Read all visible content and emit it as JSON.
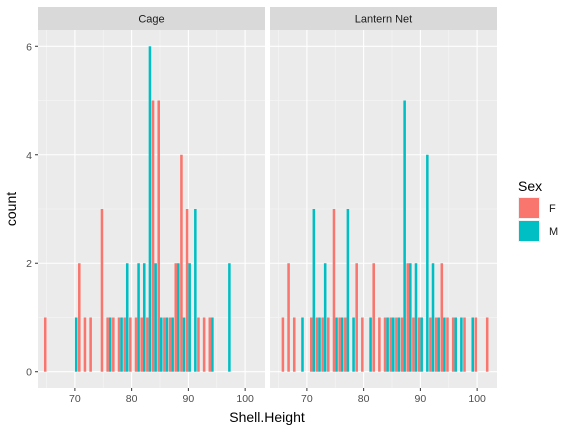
{
  "chart_data": {
    "type": "bar",
    "xlabel": "Shell.Height",
    "ylabel": "count",
    "xlim": [
      63.5,
      103.5
    ],
    "ylim": [
      -0.3,
      6.3
    ],
    "x_ticks": [
      70,
      80,
      90,
      100
    ],
    "y_ticks": [
      0,
      2,
      4,
      6
    ],
    "grid": true,
    "legend": {
      "title": "Sex",
      "placement": "right",
      "entries": [
        {
          "label": "F",
          "color": "#F8766D"
        },
        {
          "label": "M",
          "color": "#00BFC4"
        }
      ]
    },
    "facets": [
      {
        "label": "Cage",
        "series": [
          {
            "name": "F",
            "color": "#F8766D",
            "points": [
              [
                65,
                1
              ],
              [
                71,
                2
              ],
              [
                72,
                1
              ],
              [
                73,
                1
              ],
              [
                75,
                3
              ],
              [
                76,
                1
              ],
              [
                77,
                1
              ],
              [
                78,
                1
              ],
              [
                79,
                1
              ],
              [
                80,
                1
              ],
              [
                81,
                1
              ],
              [
                82,
                1
              ],
              [
                83,
                1
              ],
              [
                84,
                5
              ],
              [
                85,
                5
              ],
              [
                86,
                1
              ],
              [
                87,
                1
              ],
              [
                88,
                2
              ],
              [
                89,
                4
              ],
              [
                90,
                3
              ],
              [
                92,
                1
              ],
              [
                93,
                1
              ],
              [
                94,
                1
              ]
            ]
          },
          {
            "name": "M",
            "color": "#00BFC4",
            "points": [
              [
                70,
                1
              ],
              [
                76,
                1
              ],
              [
                78,
                1
              ],
              [
                79,
                2
              ],
              [
                81,
                2
              ],
              [
                82,
                2
              ],
              [
                83,
                6
              ],
              [
                84,
                2
              ],
              [
                85,
                1
              ],
              [
                86,
                1
              ],
              [
                87,
                1
              ],
              [
                88,
                2
              ],
              [
                89,
                1
              ],
              [
                90,
                2
              ],
              [
                91,
                3
              ],
              [
                94,
                1
              ],
              [
                97,
                2
              ]
            ]
          }
        ]
      },
      {
        "label": "Lantern Net",
        "series": [
          {
            "name": "F",
            "color": "#F8766D",
            "points": [
              [
                66,
                1
              ],
              [
                67,
                2
              ],
              [
                68,
                1
              ],
              [
                71,
                1
              ],
              [
                72,
                1
              ],
              [
                73,
                1
              ],
              [
                74,
                1
              ],
              [
                75,
                3
              ],
              [
                76,
                1
              ],
              [
                77,
                1
              ],
              [
                79,
                2
              ],
              [
                80,
                1
              ],
              [
                82,
                2
              ],
              [
                83,
                1
              ],
              [
                84,
                1
              ],
              [
                85,
                1
              ],
              [
                86,
                1
              ],
              [
                87,
                1
              ],
              [
                88,
                2
              ],
              [
                89,
                1
              ],
              [
                90,
                1
              ],
              [
                92,
                1
              ],
              [
                93,
                1
              ],
              [
                94,
                2
              ],
              [
                95,
                1
              ],
              [
                96,
                1
              ],
              [
                98,
                1
              ],
              [
                100,
                1
              ],
              [
                102,
                1
              ]
            ]
          },
          {
            "name": "M",
            "color": "#00BFC4",
            "points": [
              [
                69,
                1
              ],
              [
                71,
                3
              ],
              [
                72,
                1
              ],
              [
                73,
                2
              ],
              [
                75,
                1
              ],
              [
                76,
                1
              ],
              [
                77,
                3
              ],
              [
                78,
                1
              ],
              [
                81,
                1
              ],
              [
                84,
                1
              ],
              [
                85,
                1
              ],
              [
                86,
                1
              ],
              [
                87,
                5
              ],
              [
                88,
                2
              ],
              [
                89,
                2
              ],
              [
                90,
                1
              ],
              [
                91,
                4
              ],
              [
                92,
                2
              ],
              [
                93,
                1
              ],
              [
                94,
                1
              ],
              [
                96,
                1
              ],
              [
                97,
                1
              ],
              [
                99,
                1
              ]
            ]
          }
        ]
      }
    ]
  }
}
